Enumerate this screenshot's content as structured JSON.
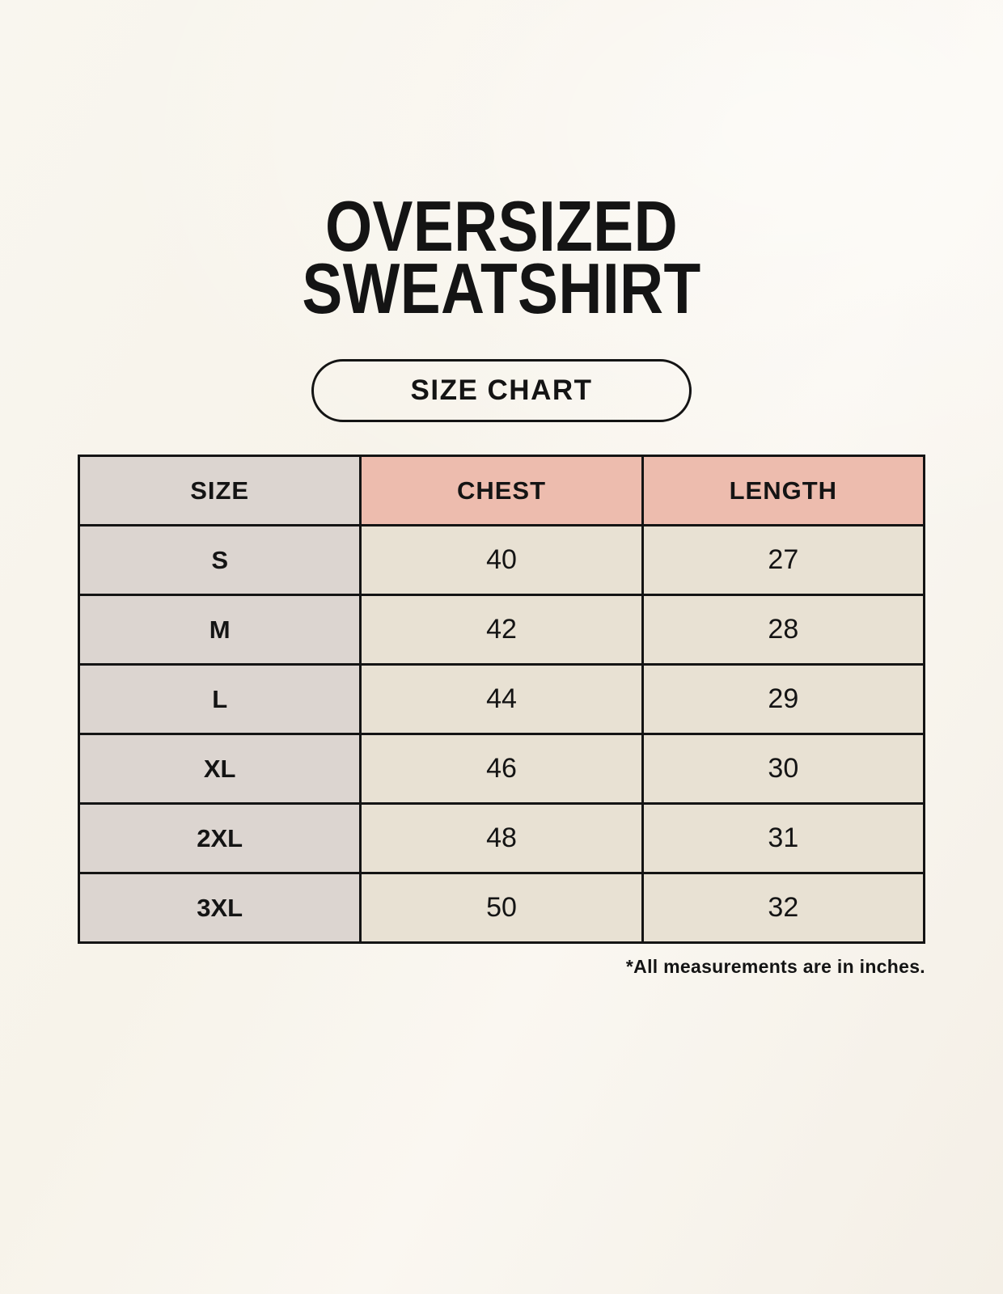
{
  "header": {
    "title_line1": "OVERSIZED",
    "title_line2": "SWEATSHIRT"
  },
  "button": {
    "label": "SIZE CHART"
  },
  "chart_data": {
    "type": "table",
    "title": "OVERSIZED SWEATSHIRT",
    "columns": [
      "SIZE",
      "CHEST",
      "LENGTH"
    ],
    "rows": [
      [
        "S",
        "40",
        "27"
      ],
      [
        "M",
        "42",
        "28"
      ],
      [
        "L",
        "44",
        "29"
      ],
      [
        "XL",
        "46",
        "30"
      ],
      [
        "2XL",
        "48",
        "31"
      ],
      [
        "3XL",
        "50",
        "32"
      ]
    ],
    "footnote": "*All measurements are in inches.",
    "units": "inches"
  },
  "colors": {
    "background": "#f8f4ec",
    "header_pink": "#edbcae",
    "size_col_grey": "#dcd5d0",
    "cell_cream": "#e8e1d3",
    "border": "#141414",
    "text": "#141414"
  }
}
